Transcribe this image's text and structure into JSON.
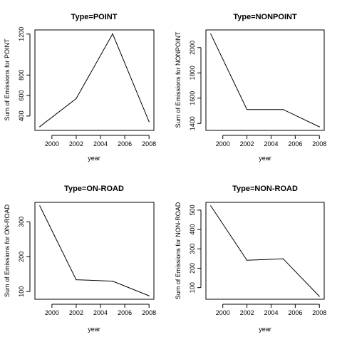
{
  "chart_data": [
    {
      "type": "line",
      "title": "Type=POINT",
      "xlabel": "year",
      "ylabel": "Sum of Emissions for POINT",
      "x": [
        1999,
        2002,
        2005,
        2008
      ],
      "values": [
        296,
        570,
        1202,
        345
      ],
      "xlim": [
        1998.6,
        2008.4
      ],
      "ylim": [
        260,
        1240
      ],
      "xticks": [
        2000,
        2002,
        2004,
        2006,
        2008
      ],
      "yticks": [
        400,
        600,
        800,
        1200
      ]
    },
    {
      "type": "line",
      "title": "Type=NONPOINT",
      "xlabel": "year",
      "ylabel": "Sum of Emissions for NONPOINT",
      "x": [
        1999,
        2002,
        2005,
        2008
      ],
      "values": [
        2108,
        1510,
        1510,
        1373
      ],
      "xlim": [
        1998.6,
        2008.4
      ],
      "ylim": [
        1345,
        2140
      ],
      "xticks": [
        2000,
        2002,
        2004,
        2006,
        2008
      ],
      "yticks": [
        1400,
        1600,
        1800,
        2000
      ]
    },
    {
      "type": "line",
      "title": "Type=ON-ROAD",
      "xlabel": "year",
      "ylabel": "Sum of Emissions for ON-ROAD",
      "x": [
        1999,
        2002,
        2005,
        2008
      ],
      "values": [
        346,
        134,
        130,
        88
      ],
      "xlim": [
        1998.6,
        2008.4
      ],
      "ylim": [
        78,
        356
      ],
      "xticks": [
        2000,
        2002,
        2004,
        2006,
        2008
      ],
      "yticks": [
        100,
        200,
        300
      ]
    },
    {
      "type": "line",
      "title": "Type=NON-ROAD",
      "xlabel": "year",
      "ylabel": "Sum of Emissions for NON-ROAD",
      "x": [
        1999,
        2002,
        2005,
        2008
      ],
      "values": [
        522,
        241,
        249,
        55
      ],
      "xlim": [
        1998.6,
        2008.4
      ],
      "ylim": [
        40,
        540
      ],
      "xticks": [
        2000,
        2002,
        2004,
        2006,
        2008
      ],
      "yticks": [
        100,
        200,
        300,
        400,
        500
      ]
    }
  ]
}
